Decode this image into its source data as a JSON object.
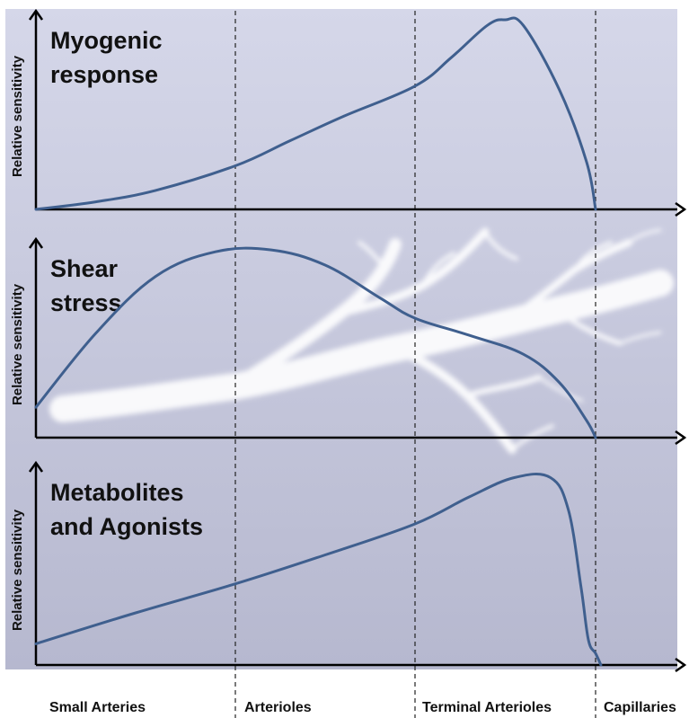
{
  "colors": {
    "curve": "#3F5F8E",
    "axis": "#000000",
    "panel_top": "#D5D7E9",
    "panel_bottom": "#B6B8CF",
    "vessel": "#FFFFFF"
  },
  "x_categories": [
    "Small Arteries",
    "Arterioles",
    "Terminal Arterioles",
    "Capillaries"
  ],
  "chart_data": [
    {
      "type": "line",
      "title_lines": [
        "Myogenic",
        "response"
      ],
      "ylabel": "Relative sensitivity",
      "x_categories": [
        "Small Arteries",
        "Arterioles",
        "Terminal Arterioles",
        "Capillaries"
      ],
      "xlim": [
        0,
        4
      ],
      "ylim": [
        0,
        1
      ],
      "x": [
        0.0,
        0.3,
        0.6,
        1.0,
        1.3,
        1.6,
        2.0,
        2.2,
        2.4,
        2.5,
        2.6,
        2.8,
        2.95,
        3.0
      ],
      "values": [
        0.0,
        0.04,
        0.1,
        0.23,
        0.36,
        0.49,
        0.65,
        0.8,
        0.97,
        1.0,
        0.97,
        0.63,
        0.25,
        0.0
      ]
    },
    {
      "type": "line",
      "title_lines": [
        "Shear",
        "stress"
      ],
      "ylabel": "Relative sensitivity",
      "x_categories": [
        "Small Arteries",
        "Arterioles",
        "Terminal Arterioles",
        "Capillaries"
      ],
      "xlim": [
        0,
        4
      ],
      "ylim": [
        0,
        1
      ],
      "x": [
        0.0,
        0.3,
        0.6,
        0.9,
        1.2,
        1.5,
        1.8,
        2.0,
        2.3,
        2.6,
        2.8,
        2.95,
        3.0
      ],
      "values": [
        0.16,
        0.55,
        0.85,
        0.98,
        0.99,
        0.91,
        0.74,
        0.63,
        0.54,
        0.44,
        0.29,
        0.09,
        0.0
      ]
    },
    {
      "type": "line",
      "title_lines": [
        "Metabolites",
        "and Agonists"
      ],
      "ylabel": "Relative sensitivity",
      "x_categories": [
        "Small Arteries",
        "Arterioles",
        "Terminal Arterioles",
        "Capillaries"
      ],
      "xlim": [
        0,
        4
      ],
      "ylim": [
        0,
        1
      ],
      "x": [
        0.0,
        0.5,
        1.0,
        1.5,
        2.0,
        2.3,
        2.55,
        2.75,
        2.85,
        2.92,
        2.96,
        3.0,
        3.06
      ],
      "values": [
        0.11,
        0.27,
        0.42,
        0.57,
        0.73,
        0.87,
        0.97,
        0.97,
        0.8,
        0.4,
        0.13,
        0.06,
        0.0
      ]
    }
  ]
}
